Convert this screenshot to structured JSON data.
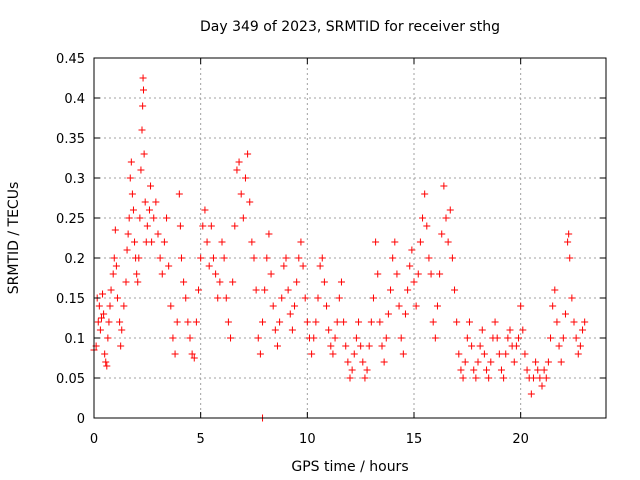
{
  "chart_data": {
    "type": "scatter",
    "title": "Day 349 of 2023, SRMTID for receiver sthg",
    "xlabel": "GPS time / hours",
    "ylabel": "SRMTID / TECUs",
    "xlim": [
      0,
      24
    ],
    "ylim": [
      0,
      0.45
    ],
    "xticks": [
      0,
      5,
      10,
      15,
      20
    ],
    "xtick_labels": [
      "0",
      "5",
      "10",
      "15",
      "20"
    ],
    "yticks": [
      0,
      0.05,
      0.1,
      0.15,
      0.2,
      0.25,
      0.3,
      0.35,
      0.4,
      0.45
    ],
    "ytick_labels": [
      "0",
      "0.05",
      "0.1",
      "0.15",
      "0.2",
      "0.25",
      "0.3",
      "0.35",
      "0.4",
      "0.45"
    ],
    "grid": true,
    "marker": "+",
    "marker_color": "#ff0000",
    "series": [
      {
        "name": "SRMTID",
        "points": [
          [
            0.0,
            0.085
          ],
          [
            0.1,
            0.09
          ],
          [
            0.15,
            0.15
          ],
          [
            0.2,
            0.12
          ],
          [
            0.25,
            0.14
          ],
          [
            0.3,
            0.11
          ],
          [
            0.35,
            0.125
          ],
          [
            0.4,
            0.155
          ],
          [
            0.45,
            0.13
          ],
          [
            0.5,
            0.08
          ],
          [
            0.55,
            0.07
          ],
          [
            0.6,
            0.065
          ],
          [
            0.65,
            0.1
          ],
          [
            0.7,
            0.12
          ],
          [
            0.75,
            0.14
          ],
          [
            0.8,
            0.16
          ],
          [
            0.9,
            0.18
          ],
          [
            0.95,
            0.2
          ],
          [
            1.0,
            0.235
          ],
          [
            1.05,
            0.19
          ],
          [
            1.1,
            0.15
          ],
          [
            1.2,
            0.12
          ],
          [
            1.25,
            0.09
          ],
          [
            1.3,
            0.11
          ],
          [
            1.4,
            0.14
          ],
          [
            1.5,
            0.17
          ],
          [
            1.55,
            0.21
          ],
          [
            1.6,
            0.23
          ],
          [
            1.65,
            0.25
          ],
          [
            1.7,
            0.3
          ],
          [
            1.75,
            0.32
          ],
          [
            1.8,
            0.28
          ],
          [
            1.85,
            0.26
          ],
          [
            1.9,
            0.22
          ],
          [
            1.95,
            0.2
          ],
          [
            2.0,
            0.18
          ],
          [
            2.05,
            0.17
          ],
          [
            2.1,
            0.2
          ],
          [
            2.15,
            0.25
          ],
          [
            2.2,
            0.31
          ],
          [
            2.25,
            0.36
          ],
          [
            2.28,
            0.39
          ],
          [
            2.3,
            0.425
          ],
          [
            2.32,
            0.41
          ],
          [
            2.35,
            0.33
          ],
          [
            2.4,
            0.27
          ],
          [
            2.45,
            0.22
          ],
          [
            2.5,
            0.24
          ],
          [
            2.6,
            0.26
          ],
          [
            2.65,
            0.29
          ],
          [
            2.7,
            0.22
          ],
          [
            2.8,
            0.25
          ],
          [
            2.9,
            0.27
          ],
          [
            3.0,
            0.23
          ],
          [
            3.1,
            0.2
          ],
          [
            3.2,
            0.18
          ],
          [
            3.3,
            0.22
          ],
          [
            3.4,
            0.25
          ],
          [
            3.5,
            0.19
          ],
          [
            3.6,
            0.14
          ],
          [
            3.7,
            0.1
          ],
          [
            3.8,
            0.08
          ],
          [
            3.9,
            0.12
          ],
          [
            4.0,
            0.28
          ],
          [
            4.05,
            0.24
          ],
          [
            4.1,
            0.2
          ],
          [
            4.2,
            0.17
          ],
          [
            4.3,
            0.15
          ],
          [
            4.4,
            0.12
          ],
          [
            4.5,
            0.1
          ],
          [
            4.6,
            0.08
          ],
          [
            4.7,
            0.075
          ],
          [
            4.8,
            0.12
          ],
          [
            4.9,
            0.16
          ],
          [
            5.0,
            0.2
          ],
          [
            5.1,
            0.24
          ],
          [
            5.2,
            0.26
          ],
          [
            5.3,
            0.22
          ],
          [
            5.4,
            0.19
          ],
          [
            5.5,
            0.24
          ],
          [
            5.6,
            0.2
          ],
          [
            5.7,
            0.18
          ],
          [
            5.8,
            0.15
          ],
          [
            5.9,
            0.17
          ],
          [
            6.0,
            0.22
          ],
          [
            6.1,
            0.2
          ],
          [
            6.2,
            0.15
          ],
          [
            6.3,
            0.12
          ],
          [
            6.4,
            0.1
          ],
          [
            6.5,
            0.17
          ],
          [
            6.6,
            0.24
          ],
          [
            6.7,
            0.31
          ],
          [
            6.8,
            0.32
          ],
          [
            6.9,
            0.28
          ],
          [
            7.0,
            0.25
          ],
          [
            7.1,
            0.3
          ],
          [
            7.2,
            0.33
          ],
          [
            7.3,
            0.27
          ],
          [
            7.4,
            0.22
          ],
          [
            7.5,
            0.2
          ],
          [
            7.6,
            0.16
          ],
          [
            7.7,
            0.1
          ],
          [
            7.8,
            0.08
          ],
          [
            7.9,
            0.12
          ],
          [
            8.0,
            0.16
          ],
          [
            8.1,
            0.2
          ],
          [
            8.2,
            0.23
          ],
          [
            8.3,
            0.18
          ],
          [
            8.4,
            0.14
          ],
          [
            8.5,
            0.11
          ],
          [
            8.6,
            0.09
          ],
          [
            8.7,
            0.12
          ],
          [
            8.8,
            0.15
          ],
          [
            8.9,
            0.19
          ],
          [
            9.0,
            0.2
          ],
          [
            9.1,
            0.16
          ],
          [
            9.2,
            0.13
          ],
          [
            9.3,
            0.11
          ],
          [
            9.4,
            0.14
          ],
          [
            9.5,
            0.17
          ],
          [
            9.6,
            0.2
          ],
          [
            9.7,
            0.22
          ],
          [
            9.8,
            0.19
          ],
          [
            9.9,
            0.15
          ],
          [
            10.0,
            0.12
          ],
          [
            10.1,
            0.1
          ],
          [
            10.2,
            0.08
          ],
          [
            10.3,
            0.1
          ],
          [
            10.4,
            0.12
          ],
          [
            10.5,
            0.15
          ],
          [
            10.6,
            0.19
          ],
          [
            10.7,
            0.2
          ],
          [
            10.8,
            0.17
          ],
          [
            10.9,
            0.14
          ],
          [
            11.0,
            0.11
          ],
          [
            11.1,
            0.09
          ],
          [
            11.2,
            0.08
          ],
          [
            11.3,
            0.1
          ],
          [
            11.4,
            0.12
          ],
          [
            11.5,
            0.15
          ],
          [
            11.6,
            0.17
          ],
          [
            11.7,
            0.12
          ],
          [
            11.8,
            0.09
          ],
          [
            11.9,
            0.07
          ],
          [
            12.0,
            0.05
          ],
          [
            12.1,
            0.06
          ],
          [
            12.2,
            0.08
          ],
          [
            12.3,
            0.1
          ],
          [
            12.4,
            0.12
          ],
          [
            12.5,
            0.09
          ],
          [
            12.6,
            0.07
          ],
          [
            12.7,
            0.05
          ],
          [
            12.8,
            0.06
          ],
          [
            12.9,
            0.09
          ],
          [
            13.0,
            0.12
          ],
          [
            13.1,
            0.15
          ],
          [
            13.2,
            0.22
          ],
          [
            13.3,
            0.18
          ],
          [
            13.4,
            0.12
          ],
          [
            13.5,
            0.09
          ],
          [
            13.6,
            0.07
          ],
          [
            13.7,
            0.1
          ],
          [
            13.8,
            0.13
          ],
          [
            13.9,
            0.16
          ],
          [
            14.0,
            0.2
          ],
          [
            14.1,
            0.22
          ],
          [
            14.2,
            0.18
          ],
          [
            14.3,
            0.14
          ],
          [
            14.4,
            0.1
          ],
          [
            14.5,
            0.08
          ],
          [
            14.6,
            0.13
          ],
          [
            14.7,
            0.16
          ],
          [
            14.8,
            0.19
          ],
          [
            14.9,
            0.21
          ],
          [
            15.0,
            0.17
          ],
          [
            15.1,
            0.14
          ],
          [
            15.2,
            0.18
          ],
          [
            15.3,
            0.22
          ],
          [
            15.4,
            0.25
          ],
          [
            15.5,
            0.28
          ],
          [
            15.6,
            0.24
          ],
          [
            15.7,
            0.2
          ],
          [
            15.8,
            0.18
          ],
          [
            15.9,
            0.12
          ],
          [
            16.0,
            0.1
          ],
          [
            16.1,
            0.14
          ],
          [
            16.2,
            0.18
          ],
          [
            16.3,
            0.23
          ],
          [
            16.4,
            0.29
          ],
          [
            16.5,
            0.25
          ],
          [
            16.6,
            0.22
          ],
          [
            16.7,
            0.26
          ],
          [
            16.8,
            0.2
          ],
          [
            16.9,
            0.16
          ],
          [
            17.0,
            0.12
          ],
          [
            17.1,
            0.08
          ],
          [
            17.2,
            0.06
          ],
          [
            17.3,
            0.05
          ],
          [
            17.4,
            0.07
          ],
          [
            17.5,
            0.1
          ],
          [
            17.6,
            0.12
          ],
          [
            17.7,
            0.09
          ],
          [
            17.8,
            0.06
          ],
          [
            17.9,
            0.05
          ],
          [
            18.0,
            0.07
          ],
          [
            18.1,
            0.09
          ],
          [
            18.2,
            0.11
          ],
          [
            18.3,
            0.08
          ],
          [
            18.4,
            0.06
          ],
          [
            18.5,
            0.05
          ],
          [
            18.6,
            0.07
          ],
          [
            18.7,
            0.1
          ],
          [
            18.8,
            0.12
          ],
          [
            18.9,
            0.1
          ],
          [
            19.0,
            0.08
          ],
          [
            19.1,
            0.06
          ],
          [
            19.2,
            0.05
          ],
          [
            19.3,
            0.08
          ],
          [
            19.4,
            0.1
          ],
          [
            19.5,
            0.11
          ],
          [
            19.6,
            0.09
          ],
          [
            19.7,
            0.07
          ],
          [
            19.8,
            0.09
          ],
          [
            19.9,
            0.1
          ],
          [
            20.0,
            0.14
          ],
          [
            20.1,
            0.11
          ],
          [
            20.2,
            0.08
          ],
          [
            20.3,
            0.06
          ],
          [
            20.4,
            0.05
          ],
          [
            20.5,
            0.03
          ],
          [
            20.6,
            0.05
          ],
          [
            20.7,
            0.07
          ],
          [
            20.8,
            0.06
          ],
          [
            20.9,
            0.05
          ],
          [
            21.0,
            0.04
          ],
          [
            21.1,
            0.06
          ],
          [
            21.2,
            0.05
          ],
          [
            21.3,
            0.07
          ],
          [
            21.4,
            0.1
          ],
          [
            21.5,
            0.14
          ],
          [
            21.6,
            0.16
          ],
          [
            21.7,
            0.12
          ],
          [
            21.8,
            0.09
          ],
          [
            21.9,
            0.07
          ],
          [
            22.0,
            0.1
          ],
          [
            22.1,
            0.13
          ],
          [
            22.2,
            0.22
          ],
          [
            22.25,
            0.23
          ],
          [
            22.3,
            0.2
          ],
          [
            22.4,
            0.15
          ],
          [
            22.5,
            0.12
          ],
          [
            22.6,
            0.1
          ],
          [
            22.7,
            0.08
          ],
          [
            22.8,
            0.09
          ],
          [
            22.9,
            0.11
          ],
          [
            23.0,
            0.12
          ],
          [
            7.9,
            0.0
          ]
        ]
      }
    ]
  }
}
